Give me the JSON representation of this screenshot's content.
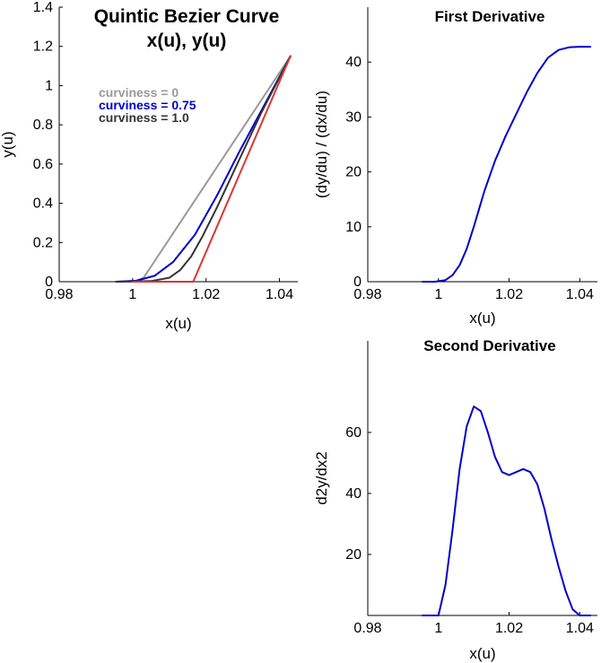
{
  "chart_data": [
    {
      "type": "line",
      "title_lines": [
        "Quintic Bezier Curve",
        "x(u), y(u)"
      ],
      "title_color": "#4a4a4a",
      "xlabel": "x(u)",
      "ylabel": "y(u)",
      "xlim": [
        0.98,
        1.045
      ],
      "ylim": [
        0,
        1.4
      ],
      "xticks": [
        0.98,
        1,
        1.02,
        1.04
      ],
      "xtick_labels": [
        "0.98",
        "1",
        "1.02",
        "1.04"
      ],
      "yticks": [
        0,
        0.2,
        0.4,
        0.6,
        0.8,
        1,
        1.2,
        1.4
      ],
      "ytick_labels": [
        "0",
        "0.2",
        "0.4",
        "0.6",
        "0.8",
        "1",
        "1.2",
        "1.4"
      ],
      "legend_entries": [
        {
          "label": "curviness = 0",
          "color": "#999999"
        },
        {
          "label": "curviness = 0.75",
          "color": "#0000cc"
        },
        {
          "label": "curviness = 1.0",
          "color": "#333333"
        }
      ],
      "series": [
        {
          "color": "#999999",
          "x": [
            0.9955,
            1.0005,
            1.003,
            1.043
          ],
          "y": [
            0,
            0,
            0.02,
            1.15
          ]
        },
        {
          "color": "#0000cc",
          "x": [
            0.9955,
            1.001,
            1.006,
            1.011,
            1.017,
            1.023,
            1.029,
            1.035,
            1.043
          ],
          "y": [
            0,
            0.005,
            0.03,
            0.1,
            0.24,
            0.44,
            0.66,
            0.87,
            1.15
          ]
        },
        {
          "color": "#333333",
          "x": [
            0.9955,
            1.005,
            1.01,
            1.013,
            1.016,
            1.019,
            1.023,
            1.029,
            1.035,
            1.043
          ],
          "y": [
            0,
            0.003,
            0.02,
            0.06,
            0.13,
            0.23,
            0.38,
            0.62,
            0.86,
            1.15
          ]
        },
        {
          "color": "#dd3333",
          "x": [
            1.0,
            1.0165,
            1.043
          ],
          "y": [
            0,
            0,
            1.15
          ]
        }
      ]
    },
    {
      "type": "line",
      "title_lines": [
        "First Derivative"
      ],
      "title_color": "#000000",
      "xlabel": "x(u)",
      "ylabel": "(dy/du) / (dx/du)",
      "xlim": [
        0.98,
        1.045
      ],
      "ylim": [
        0,
        50
      ],
      "xticks": [
        0.98,
        1,
        1.02,
        1.04
      ],
      "xtick_labels": [
        "0.98",
        "1",
        "1.02",
        "1.04"
      ],
      "yticks": [
        0,
        10,
        20,
        30,
        40
      ],
      "ytick_labels": [
        "0",
        "10",
        "20",
        "30",
        "40"
      ],
      "series": [
        {
          "color": "#0000cc",
          "x": [
            0.9955,
            0.999,
            1.002,
            1.004,
            1.006,
            1.008,
            1.01,
            1.013,
            1.016,
            1.019,
            1.022,
            1.025,
            1.028,
            1.031,
            1.034,
            1.037,
            1.04,
            1.043
          ],
          "y": [
            0,
            0,
            0.3,
            1.2,
            3.0,
            6.0,
            10.0,
            16.5,
            22.0,
            26.5,
            30.5,
            34.5,
            38.0,
            40.8,
            42.2,
            42.7,
            42.8,
            42.8
          ]
        }
      ]
    },
    {
      "type": "line",
      "title_lines": [
        "Second Derivative"
      ],
      "title_color": "#000000",
      "xlabel": "x(u)",
      "ylabel": "d2y/dx2",
      "xlim": [
        0.98,
        1.045
      ],
      "ylim": [
        0,
        90
      ],
      "xticks": [
        0.98,
        1,
        1.02,
        1.04
      ],
      "xtick_labels": [
        "0.98",
        "1",
        "1.02",
        "1.04"
      ],
      "yticks": [
        20,
        40,
        60
      ],
      "ytick_labels": [
        "20",
        "40",
        "60"
      ],
      "series": [
        {
          "color": "#0000cc",
          "x": [
            0.9955,
            1.0,
            1.002,
            1.004,
            1.006,
            1.008,
            1.01,
            1.012,
            1.014,
            1.016,
            1.018,
            1.02,
            1.022,
            1.024,
            1.026,
            1.028,
            1.03,
            1.032,
            1.034,
            1.036,
            1.038,
            1.04,
            1.042,
            1.043
          ],
          "y": [
            0,
            0,
            10,
            28,
            48,
            62,
            68.5,
            67,
            60,
            52,
            47,
            46,
            47,
            48,
            47,
            43,
            35,
            25,
            16,
            8,
            2,
            0,
            0,
            0
          ]
        }
      ]
    }
  ]
}
